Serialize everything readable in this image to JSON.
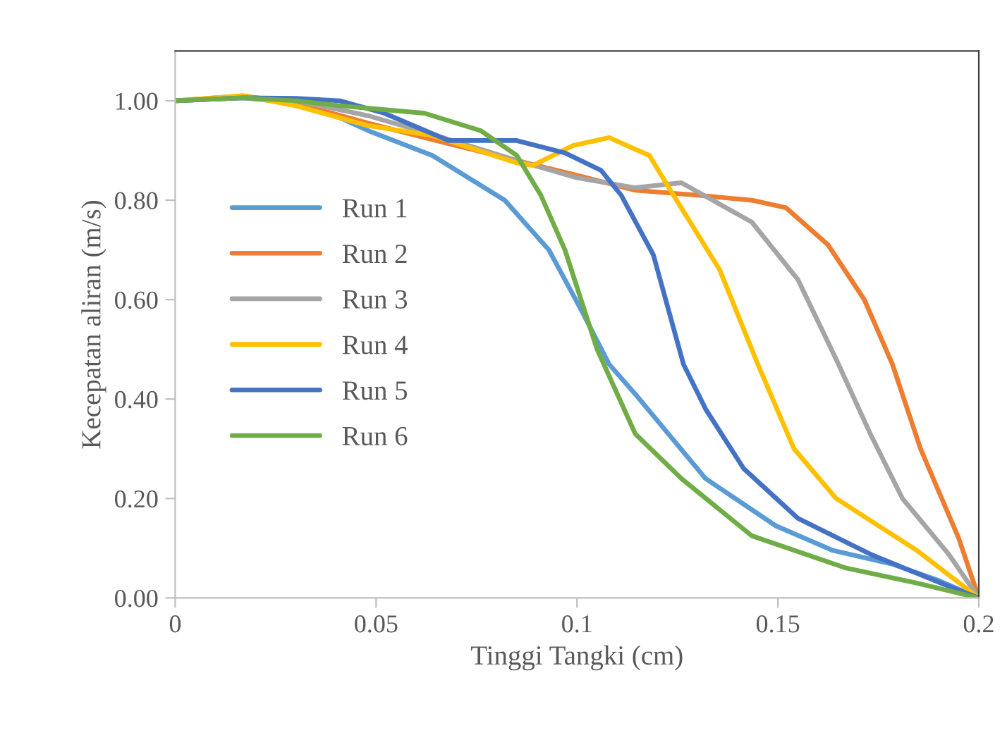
{
  "chart_data": {
    "type": "line",
    "xlabel": "Tinggi Tangki (cm)",
    "ylabel": "Kecepatan aliran (m/s)",
    "xlim": [
      0,
      0.2
    ],
    "xticks": [
      0,
      0.05,
      0.1,
      0.15,
      0.2
    ],
    "ylim": [
      0,
      1.1
    ],
    "yticks": [
      {
        "value": 0,
        "label": "0.00"
      },
      {
        "value": 0.2,
        "label": "0.20"
      },
      {
        "value": 0.4,
        "label": "0.40"
      },
      {
        "value": 0.6,
        "label": "0.60"
      },
      {
        "value": 0.8,
        "label": "0.80"
      },
      {
        "value": 1.0,
        "label": "1.00"
      }
    ],
    "grid": false,
    "legend": "left",
    "marker": "none",
    "line_style": "solid",
    "series": [
      {
        "name": "Run 1",
        "color": "#5b9bd5",
        "x": [
          0,
          0.017,
          0.03,
          0.041,
          0.048,
          0.064,
          0.082,
          0.093,
          0.101,
          0.108,
          0.1145,
          0.132,
          0.1495,
          0.1635,
          0.1785,
          0.19,
          0.2
        ],
        "values": [
          1.0,
          1.006,
          0.995,
          0.966,
          0.94,
          0.89,
          0.8,
          0.7,
          0.58,
          0.47,
          0.41,
          0.24,
          0.145,
          0.096,
          0.068,
          0.035,
          0.0
        ]
      },
      {
        "name": "Run 2",
        "color": "#ed7d31",
        "x": [
          0,
          0.017,
          0.03,
          0.048,
          0.065,
          0.085,
          0.1,
          0.1145,
          0.13,
          0.1435,
          0.152,
          0.1625,
          0.1715,
          0.1785,
          0.1855,
          0.195,
          0.2
        ],
        "values": [
          1.0,
          1.01,
          0.995,
          0.955,
          0.92,
          0.88,
          0.85,
          0.82,
          0.81,
          0.8,
          0.785,
          0.71,
          0.6,
          0.47,
          0.3,
          0.12,
          0.0
        ]
      },
      {
        "name": "Run 3",
        "color": "#a5a5a5",
        "x": [
          0,
          0.017,
          0.03,
          0.048,
          0.065,
          0.085,
          0.1,
          0.1145,
          0.126,
          0.1435,
          0.155,
          0.1645,
          0.173,
          0.181,
          0.1925,
          0.2
        ],
        "values": [
          1.0,
          1.006,
          1.0,
          0.97,
          0.93,
          0.88,
          0.845,
          0.825,
          0.835,
          0.756,
          0.64,
          0.48,
          0.33,
          0.2,
          0.088,
          0.0
        ]
      },
      {
        "name": "Run 4",
        "color": "#ffc000",
        "x": [
          0,
          0.017,
          0.03,
          0.048,
          0.064,
          0.085,
          0.089,
          0.099,
          0.108,
          0.118,
          0.1225,
          0.1355,
          0.1425,
          0.145,
          0.154,
          0.1645,
          0.1845,
          0.2
        ],
        "values": [
          1.0,
          1.01,
          0.99,
          0.95,
          0.93,
          0.875,
          0.87,
          0.91,
          0.926,
          0.89,
          0.83,
          0.66,
          0.52,
          0.47,
          0.3,
          0.2,
          0.096,
          0.0
        ]
      },
      {
        "name": "Run 5",
        "color": "#4472c4",
        "x": [
          0,
          0.017,
          0.03,
          0.041,
          0.052,
          0.068,
          0.085,
          0.097,
          0.106,
          0.111,
          0.119,
          0.1265,
          0.132,
          0.1415,
          0.155,
          0.173,
          0.1905,
          0.2
        ],
        "values": [
          1.0,
          1.006,
          1.005,
          1.0,
          0.975,
          0.92,
          0.92,
          0.895,
          0.86,
          0.81,
          0.69,
          0.47,
          0.38,
          0.26,
          0.16,
          0.088,
          0.03,
          0.0
        ]
      },
      {
        "name": "Run 6",
        "color": "#70ad47",
        "x": [
          0,
          0.017,
          0.03,
          0.041,
          0.062,
          0.076,
          0.085,
          0.091,
          0.097,
          0.105,
          0.1145,
          0.126,
          0.1435,
          0.167,
          0.1845,
          0.2
        ],
        "values": [
          1.0,
          1.006,
          1.0,
          0.99,
          0.975,
          0.94,
          0.89,
          0.81,
          0.7,
          0.5,
          0.33,
          0.24,
          0.125,
          0.06,
          0.03,
          0.0
        ]
      }
    ]
  }
}
